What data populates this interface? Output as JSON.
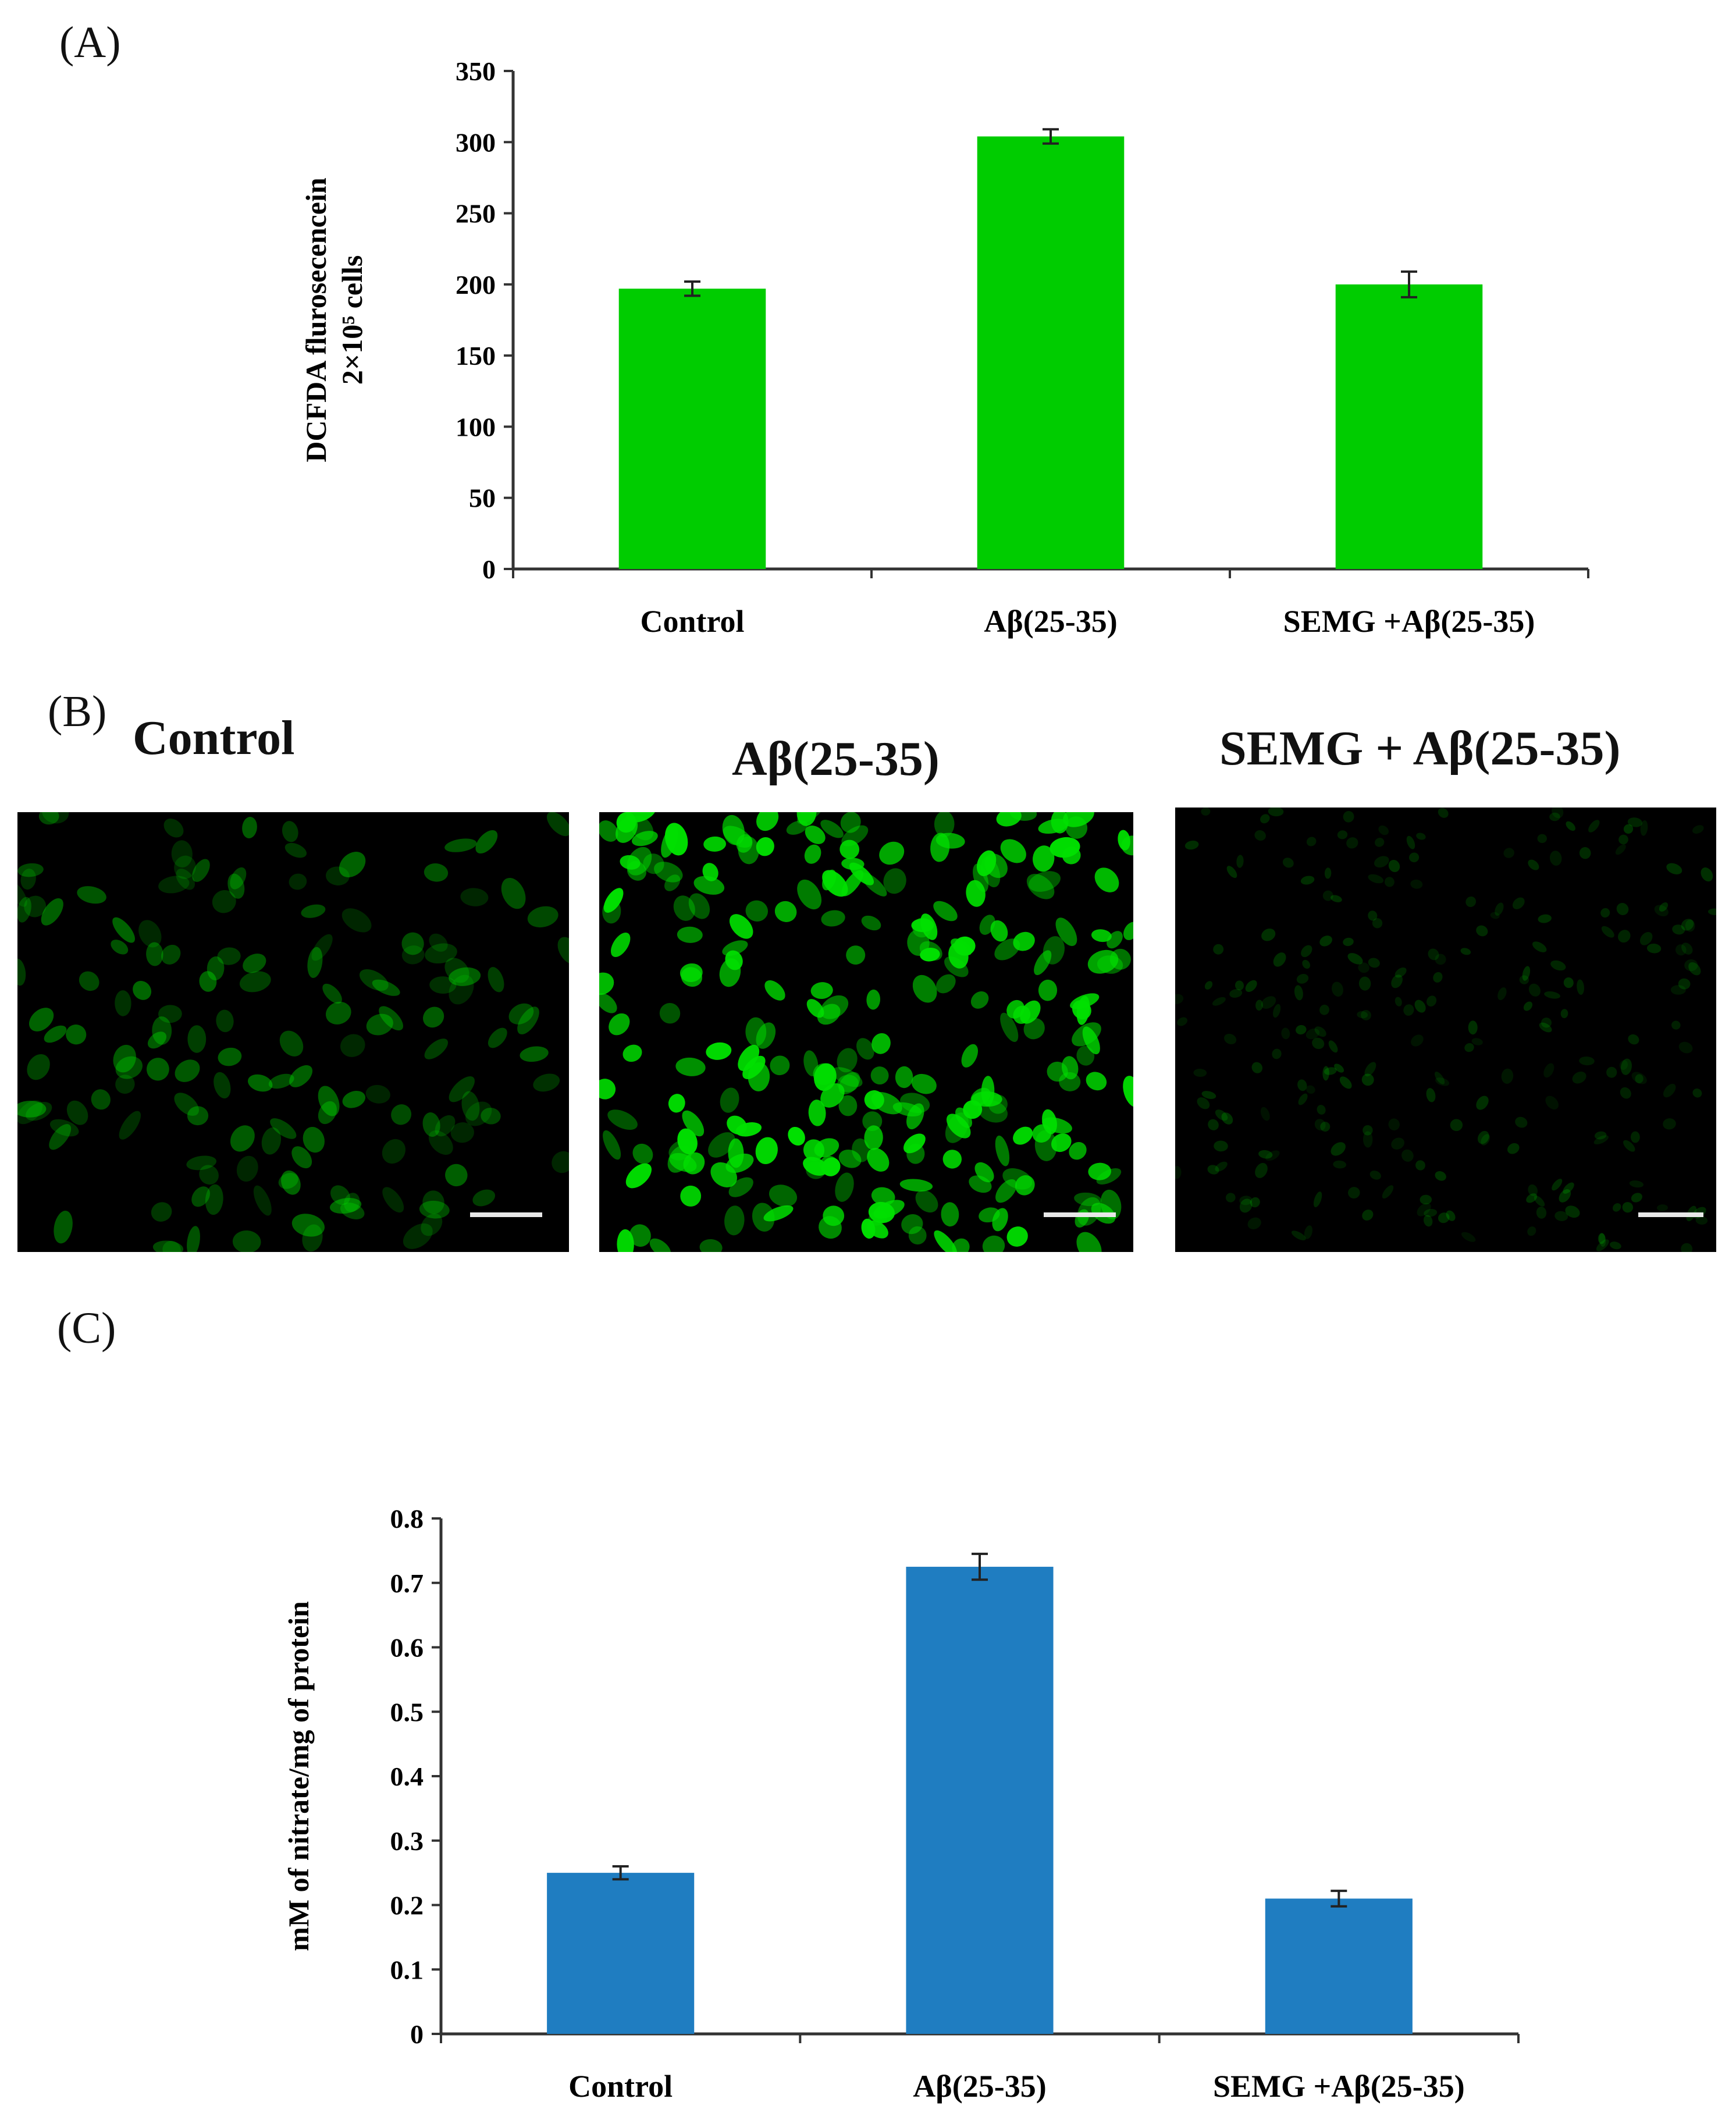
{
  "panels": {
    "a_label": "(A)",
    "b_label": "(B)",
    "c_label": "(C)"
  },
  "chart_data": [
    {
      "type": "bar",
      "panel": "A",
      "categories": [
        "Control",
        "Aβ(25-35)",
        "SEMG +Aβ(25-35)"
      ],
      "values": [
        197,
        304,
        200
      ],
      "errors": [
        5,
        5,
        9
      ],
      "ylabel_line1": "DCFDA flurosecencein",
      "ylabel_line2": "2×10⁵ cells",
      "ylim": [
        0,
        350
      ],
      "yticks": [
        0,
        50,
        100,
        150,
        200,
        250,
        300,
        350
      ],
      "ytick_labels": [
        "0",
        "50",
        "100",
        "150",
        "200",
        "250",
        "300",
        "350"
      ],
      "bar_color": "#00cc00",
      "grid": false,
      "legend": "none"
    },
    {
      "type": "bar",
      "panel": "C",
      "categories": [
        "Control",
        "Aβ(25-35)",
        "SEMG +Aβ(25-35)"
      ],
      "values": [
        0.25,
        0.725,
        0.21
      ],
      "errors": [
        0.01,
        0.02,
        0.012
      ],
      "ylabel_line1": "mM of nitrate/mg of protein",
      "ylim": [
        0,
        0.8
      ],
      "yticks": [
        0,
        0.1,
        0.2,
        0.3,
        0.4,
        0.5,
        0.6,
        0.7,
        0.8
      ],
      "ytick_labels": [
        "0",
        "0.1",
        "0.2",
        "0.3",
        "0.4",
        "0.5",
        "0.6",
        "0.7",
        "0.8"
      ],
      "bar_color": "#1f7dc1",
      "grid": false,
      "legend": "none"
    }
  ],
  "micrographs": {
    "titles": [
      "Control",
      "Aβ(25-35)",
      "SEMG + Aβ(25-35)"
    ],
    "fluorescence_color": "#00e000",
    "brightness": [
      0.45,
      1.0,
      0.22
    ]
  }
}
